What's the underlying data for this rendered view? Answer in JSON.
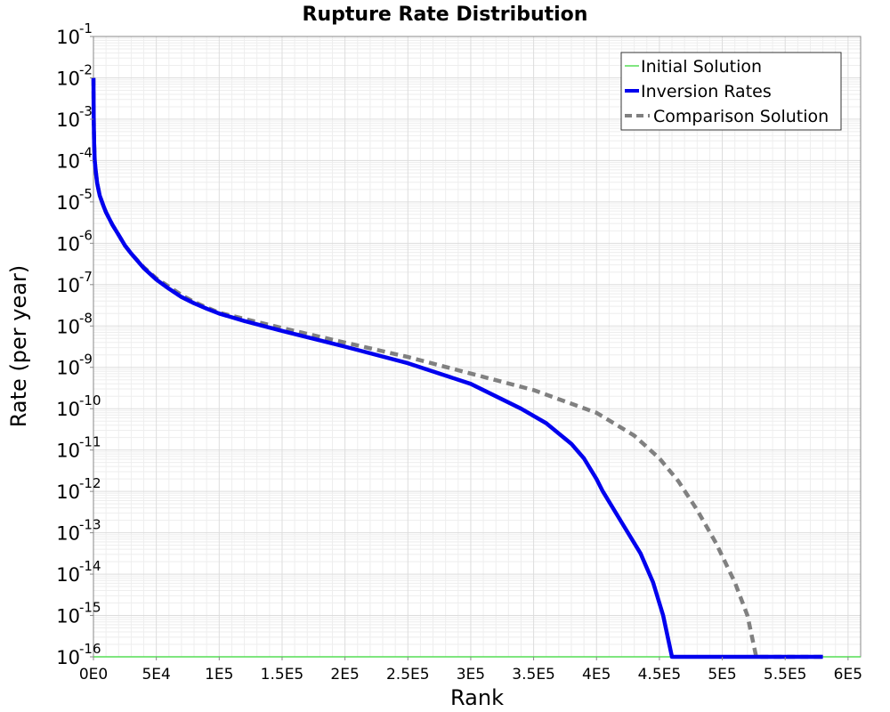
{
  "chart_data": {
    "type": "line",
    "title": "Rupture Rate Distribution",
    "xlabel": "Rank",
    "ylabel": "Rate (per year)",
    "xlim": [
      0,
      610000
    ],
    "ylim_exponents": [
      -16,
      -1
    ],
    "yscale": "log",
    "x_ticks": [
      {
        "value": 0,
        "label": "0E0"
      },
      {
        "value": 50000,
        "label": "5E4"
      },
      {
        "value": 100000,
        "label": "1E5"
      },
      {
        "value": 150000,
        "label": "1.5E5"
      },
      {
        "value": 200000,
        "label": "2E5"
      },
      {
        "value": 250000,
        "label": "2.5E5"
      },
      {
        "value": 300000,
        "label": "3E5"
      },
      {
        "value": 350000,
        "label": "3.5E5"
      },
      {
        "value": 400000,
        "label": "4E5"
      },
      {
        "value": 450000,
        "label": "4.5E5"
      },
      {
        "value": 500000,
        "label": "5E5"
      },
      {
        "value": 550000,
        "label": "5.5E5"
      },
      {
        "value": 600000,
        "label": "6E5"
      }
    ],
    "y_ticks": [
      {
        "exp": -1,
        "base": "10",
        "sup": "-1"
      },
      {
        "exp": -2,
        "base": "10",
        "sup": "-2"
      },
      {
        "exp": -3,
        "base": "10",
        "sup": "-3"
      },
      {
        "exp": -4,
        "base": "10",
        "sup": "-4"
      },
      {
        "exp": -5,
        "base": "10",
        "sup": "-5"
      },
      {
        "exp": -6,
        "base": "10",
        "sup": "-6"
      },
      {
        "exp": -7,
        "base": "10",
        "sup": "-7"
      },
      {
        "exp": -8,
        "base": "10",
        "sup": "-8"
      },
      {
        "exp": -9,
        "base": "10",
        "sup": "-9"
      },
      {
        "exp": -10,
        "base": "10",
        "sup": "-10"
      },
      {
        "exp": -11,
        "base": "10",
        "sup": "-11"
      },
      {
        "exp": -12,
        "base": "10",
        "sup": "-12"
      },
      {
        "exp": -13,
        "base": "10",
        "sup": "-13"
      },
      {
        "exp": -14,
        "base": "10",
        "sup": "-14"
      },
      {
        "exp": -15,
        "base": "10",
        "sup": "-15"
      },
      {
        "exp": -16,
        "base": "10",
        "sup": "-16"
      }
    ],
    "legend_position": "top-right",
    "series": [
      {
        "name": "Initial Solution",
        "color": "#55dd55",
        "style": "solid-thin",
        "points": [
          [
            0,
            -16
          ],
          [
            610000,
            -16
          ]
        ]
      },
      {
        "name": "Inversion Rates",
        "color": "#0000ee",
        "style": "solid-thick",
        "points": [
          [
            0,
            -2
          ],
          [
            200,
            -3
          ],
          [
            600,
            -3.6
          ],
          [
            1000,
            -4
          ],
          [
            2000,
            -4.3
          ],
          [
            3000,
            -4.55
          ],
          [
            5000,
            -4.85
          ],
          [
            8000,
            -5.1
          ],
          [
            10000,
            -5.25
          ],
          [
            15000,
            -5.55
          ],
          [
            20000,
            -5.8
          ],
          [
            25000,
            -6.05
          ],
          [
            30000,
            -6.25
          ],
          [
            40000,
            -6.6
          ],
          [
            50000,
            -6.88
          ],
          [
            60000,
            -7.1
          ],
          [
            70000,
            -7.3
          ],
          [
            80000,
            -7.45
          ],
          [
            90000,
            -7.58
          ],
          [
            100000,
            -7.7
          ],
          [
            120000,
            -7.88
          ],
          [
            150000,
            -8.12
          ],
          [
            200000,
            -8.5
          ],
          [
            250000,
            -8.9
          ],
          [
            300000,
            -9.4
          ],
          [
            340000,
            -10.0
          ],
          [
            360000,
            -10.35
          ],
          [
            380000,
            -10.85
          ],
          [
            390000,
            -11.2
          ],
          [
            400000,
            -11.7
          ],
          [
            405000,
            -12.0
          ],
          [
            420000,
            -12.75
          ],
          [
            435000,
            -13.5
          ],
          [
            445000,
            -14.2
          ],
          [
            453000,
            -15.0
          ],
          [
            460000,
            -16
          ],
          [
            580000,
            -16
          ]
        ]
      },
      {
        "name": "Comparison Solution",
        "color": "#808080",
        "style": "dashed-thick",
        "points": [
          [
            0,
            -2
          ],
          [
            200,
            -3
          ],
          [
            600,
            -3.6
          ],
          [
            1000,
            -4
          ],
          [
            2000,
            -4.3
          ],
          [
            3000,
            -4.55
          ],
          [
            5000,
            -4.85
          ],
          [
            8000,
            -5.1
          ],
          [
            10000,
            -5.25
          ],
          [
            15000,
            -5.55
          ],
          [
            20000,
            -5.8
          ],
          [
            25000,
            -6.05
          ],
          [
            30000,
            -6.25
          ],
          [
            40000,
            -6.58
          ],
          [
            50000,
            -6.85
          ],
          [
            60000,
            -7.05
          ],
          [
            70000,
            -7.25
          ],
          [
            80000,
            -7.42
          ],
          [
            100000,
            -7.68
          ],
          [
            150000,
            -8.05
          ],
          [
            200000,
            -8.4
          ],
          [
            250000,
            -8.75
          ],
          [
            300000,
            -9.15
          ],
          [
            350000,
            -9.55
          ],
          [
            400000,
            -10.1
          ],
          [
            430000,
            -10.65
          ],
          [
            450000,
            -11.2
          ],
          [
            465000,
            -11.75
          ],
          [
            480000,
            -12.45
          ],
          [
            495000,
            -13.25
          ],
          [
            510000,
            -14.2
          ],
          [
            520000,
            -15.0
          ],
          [
            527000,
            -16
          ],
          [
            580000,
            -16
          ]
        ]
      }
    ]
  }
}
